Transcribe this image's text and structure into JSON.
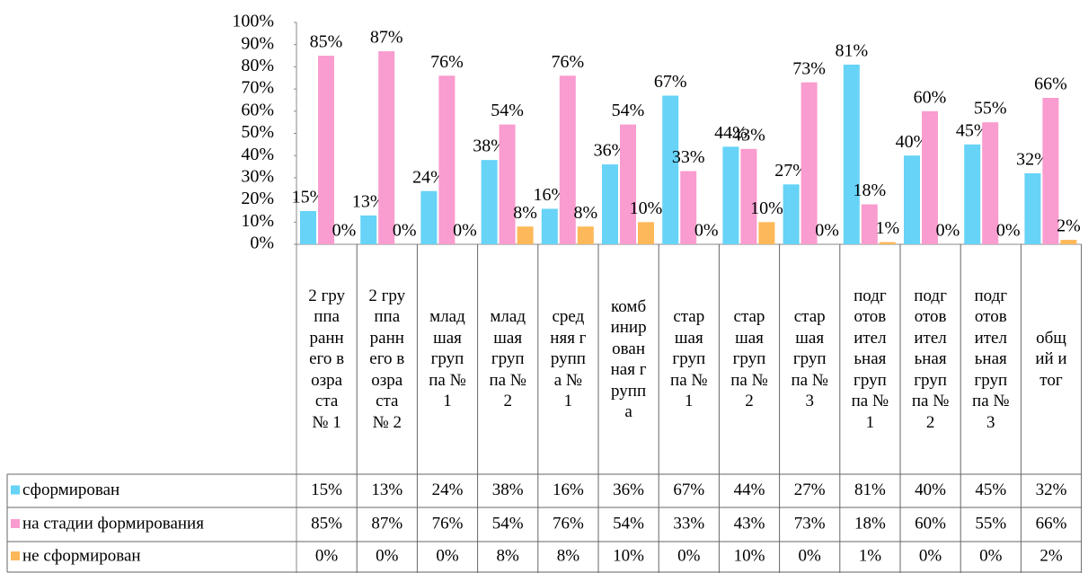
{
  "chart_data": {
    "type": "bar",
    "categories": [
      "2 группа раннего возраста № 1",
      "2 группа раннего возраста № 2",
      "младшая группа № 1",
      "младшая группа № 2",
      "средняя группа № 1",
      "комбинированная группа",
      "старшая группа № 1",
      "старшая группа № 2",
      "старшая группа № 3",
      "подготовительная группа № 1",
      "подготовительная группа № 2",
      "подготовительная группа № 3",
      "общий итог"
    ],
    "series": [
      {
        "name": "сформирован",
        "color": "#66d3f7",
        "values": [
          15,
          13,
          24,
          38,
          16,
          36,
          67,
          44,
          27,
          81,
          40,
          45,
          32
        ],
        "value_labels": [
          "15%",
          "13%",
          "24%",
          "38%",
          "16%",
          "36%",
          "67%",
          "44%",
          "27%",
          "81%",
          "40%",
          "45%",
          "32%"
        ]
      },
      {
        "name": "на стадии формирования",
        "color": "#f99ccf",
        "values": [
          85,
          87,
          76,
          54,
          76,
          54,
          33,
          43,
          73,
          18,
          60,
          55,
          66
        ],
        "value_labels": [
          "85%",
          "87%",
          "76%",
          "54%",
          "76%",
          "54%",
          "33%",
          "43%",
          "73%",
          "18%",
          "60%",
          "55%",
          "66%"
        ]
      },
      {
        "name": "не сформирован",
        "color": "#fdb85a",
        "values": [
          0,
          0,
          0,
          8,
          8,
          10,
          0,
          10,
          0,
          1,
          0,
          0,
          2
        ],
        "value_labels": [
          "0%",
          "0%",
          "0%",
          "8%",
          "8%",
          "10%",
          "0%",
          "10%",
          "0%",
          "1%",
          "0%",
          "0%",
          "2%"
        ]
      }
    ],
    "ylim": [
      0,
      100
    ],
    "yticks": [
      {
        "value": 0,
        "label": "0%"
      },
      {
        "value": 10,
        "label": "10%"
      },
      {
        "value": 20,
        "label": "20%"
      },
      {
        "value": 30,
        "label": "30%"
      },
      {
        "value": 40,
        "label": "40%"
      },
      {
        "value": 50,
        "label": "50%"
      },
      {
        "value": 60,
        "label": "60%"
      },
      {
        "value": 70,
        "label": "70%"
      },
      {
        "value": 80,
        "label": "80%"
      },
      {
        "value": 90,
        "label": "90%"
      },
      {
        "value": 100,
        "label": "100%"
      }
    ],
    "grid": false
  }
}
